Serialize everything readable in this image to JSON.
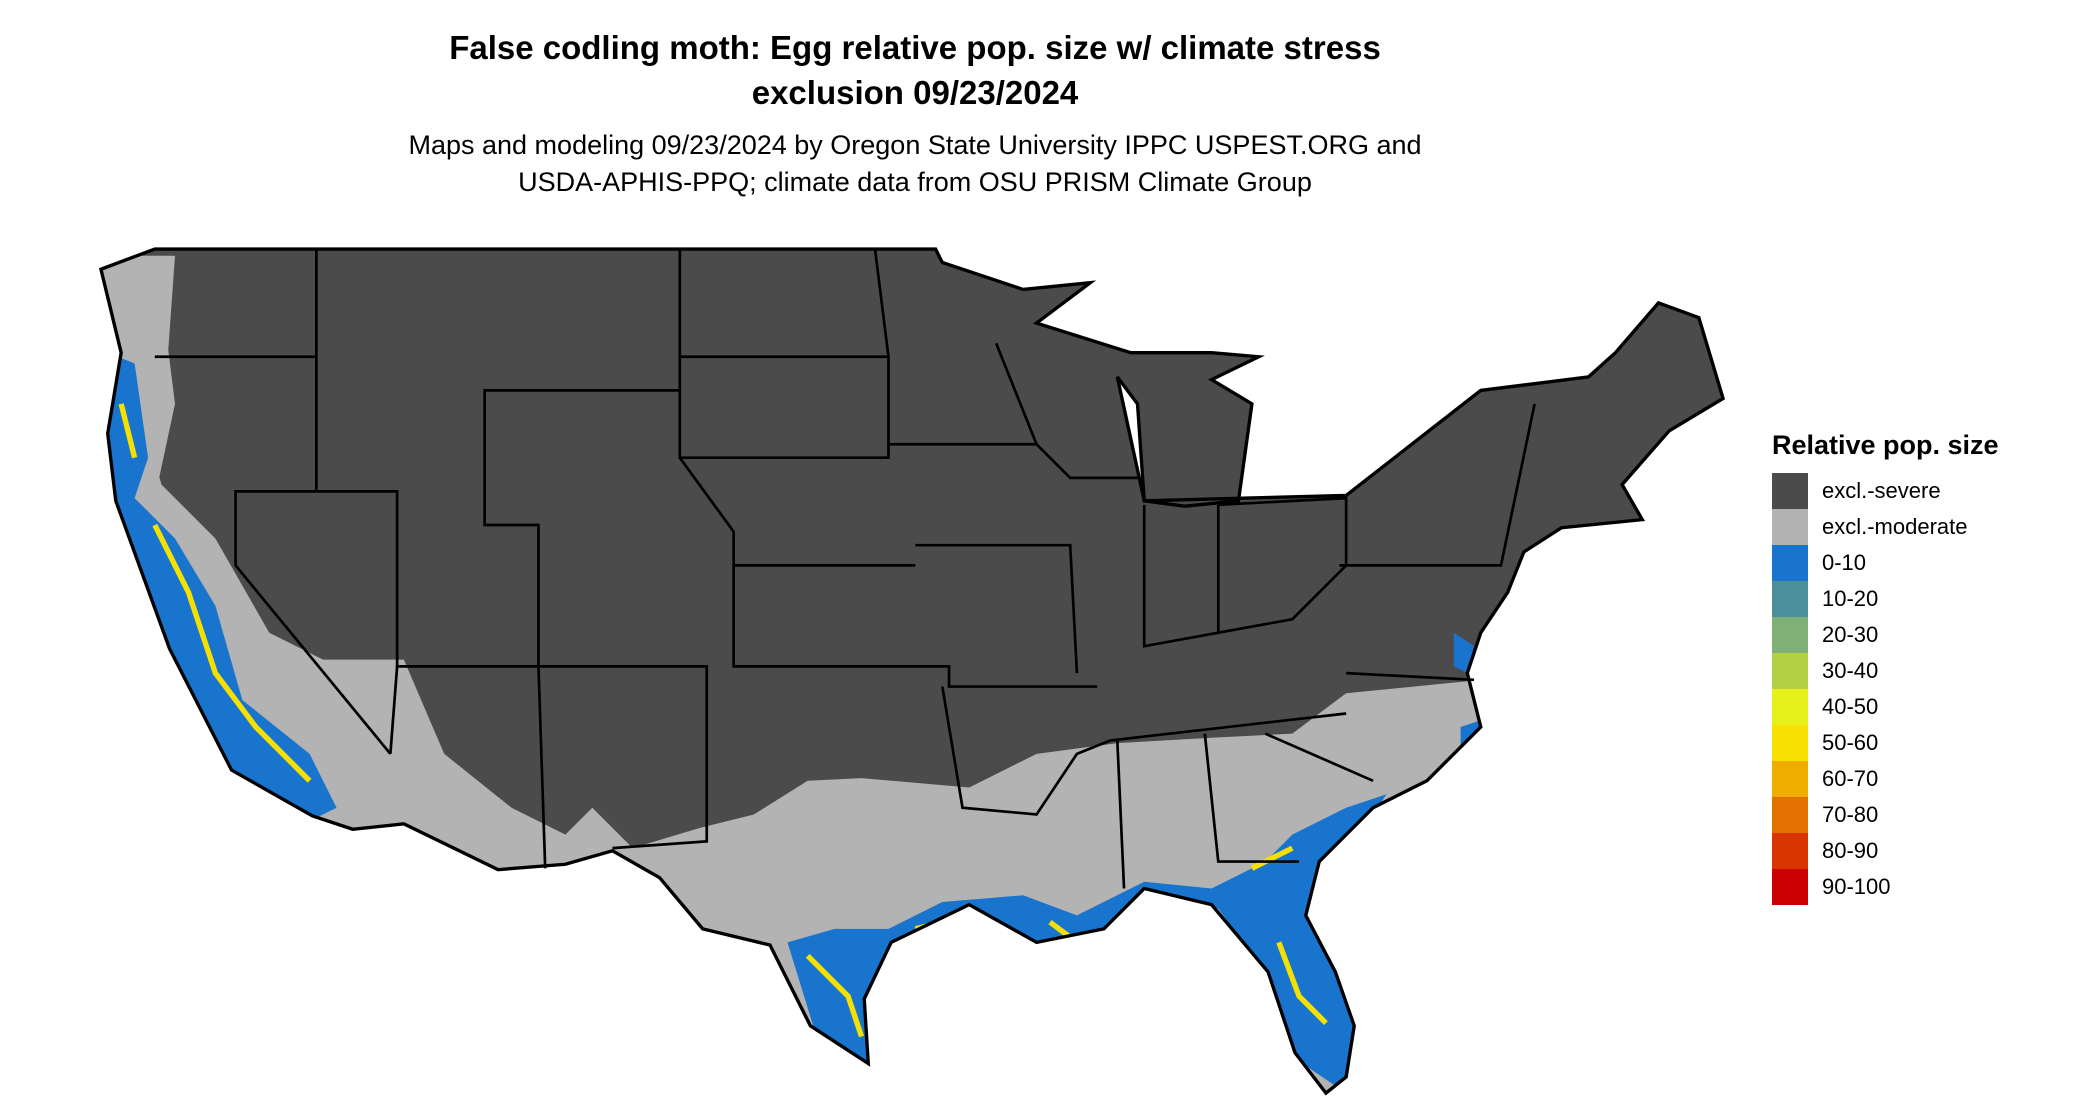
{
  "title": {
    "line1": "False codling moth: Egg relative pop. size w/ climate stress",
    "line2": "exclusion 09/23/2024"
  },
  "subtitle": {
    "line1": "Maps and modeling 09/23/2024 by Oregon State University IPPC USPEST.ORG and",
    "line2": "USDA-APHIS-PPQ; climate data from OSU PRISM Climate Group"
  },
  "map": {
    "region": "Contiguous United States",
    "colors": {
      "excl_severe": "#4b4b4b",
      "excl_moderate": "#b3b3b3",
      "low": "#1874cd",
      "mid": "#f5e000",
      "border": "#000000"
    }
  },
  "legend": {
    "title": "Relative pop. size",
    "items": [
      {
        "label": "excl.-severe",
        "color": "#4b4b4b"
      },
      {
        "label": "excl.-moderate",
        "color": "#b3b3b3"
      },
      {
        "label": "0-10",
        "color": "#1874cd"
      },
      {
        "label": "10-20",
        "color": "#4a8f9a"
      },
      {
        "label": "20-30",
        "color": "#7fb075"
      },
      {
        "label": "30-40",
        "color": "#b3d147"
      },
      {
        "label": "40-50",
        "color": "#e6f01a"
      },
      {
        "label": "50-60",
        "color": "#f8e000"
      },
      {
        "label": "60-70",
        "color": "#efad00"
      },
      {
        "label": "70-80",
        "color": "#e27100"
      },
      {
        "label": "80-90",
        "color": "#d93500"
      },
      {
        "label": "90-100",
        "color": "#cc0000"
      }
    ]
  }
}
